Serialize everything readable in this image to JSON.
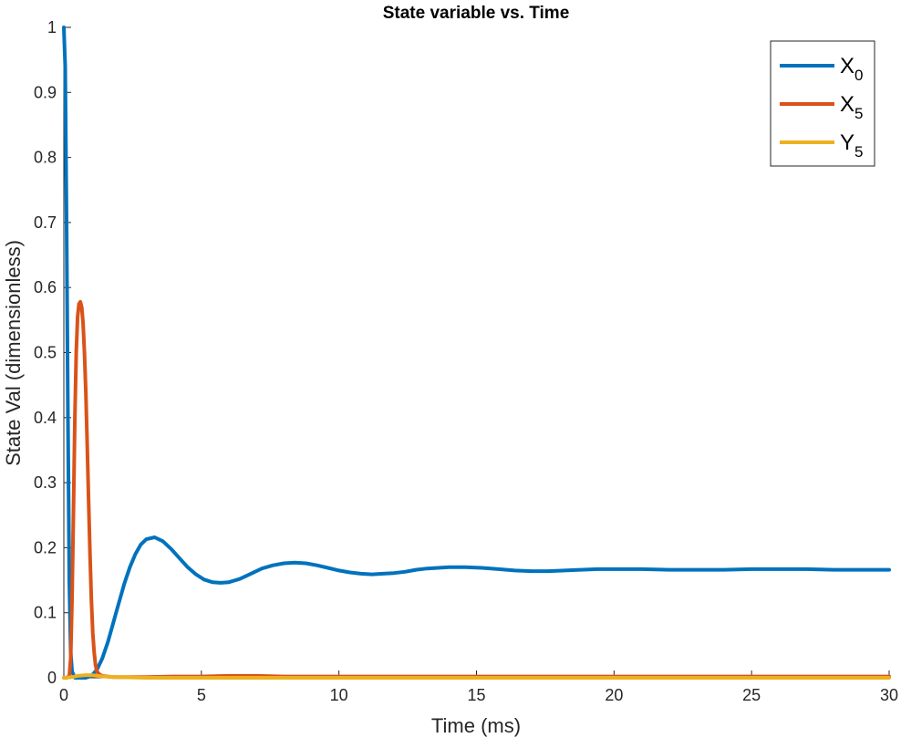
{
  "chart_data": {
    "type": "line",
    "title": "State variable vs. Time",
    "xlabel": "Time (ms)",
    "ylabel": "State Val (dimensionless)",
    "xlim": [
      0,
      30
    ],
    "ylim": [
      0,
      1
    ],
    "xticks": [
      "0",
      "5",
      "10",
      "15",
      "20",
      "25",
      "30"
    ],
    "yticks": [
      "0",
      "0.1",
      "0.2",
      "0.3",
      "0.4",
      "0.5",
      "0.6",
      "0.7",
      "0.8",
      "0.9",
      "1"
    ],
    "grid": false,
    "legend_position": "top-right",
    "series": [
      {
        "name": "X",
        "subscript": "0",
        "color": "#0072BD",
        "x": [
          0,
          0.05,
          0.1,
          0.15,
          0.2,
          0.25,
          0.3,
          0.4,
          0.6,
          0.8,
          1.0,
          1.2,
          1.4,
          1.6,
          1.8,
          2.0,
          2.2,
          2.4,
          2.6,
          2.8,
          3.0,
          3.3,
          3.6,
          3.9,
          4.2,
          4.5,
          4.8,
          5.1,
          5.4,
          5.7,
          6.0,
          6.4,
          6.8,
          7.2,
          7.6,
          8.0,
          8.4,
          8.8,
          9.2,
          9.6,
          10.0,
          10.4,
          10.8,
          11.2,
          11.6,
          12.0,
          12.4,
          12.8,
          13.2,
          13.6,
          14.0,
          14.6,
          15.2,
          15.8,
          16.4,
          17.0,
          17.6,
          18.2,
          18.8,
          19.4,
          20.0,
          21.0,
          22.0,
          23.0,
          24.0,
          25.0,
          26.0,
          27.0,
          28.0,
          29.0,
          30.0
        ],
        "y": [
          1.0,
          0.94,
          0.7,
          0.4,
          0.15,
          0.04,
          0.01,
          0.0,
          0.0,
          0.0,
          0.003,
          0.012,
          0.03,
          0.055,
          0.085,
          0.115,
          0.145,
          0.17,
          0.19,
          0.205,
          0.213,
          0.216,
          0.21,
          0.198,
          0.184,
          0.17,
          0.159,
          0.151,
          0.147,
          0.146,
          0.147,
          0.152,
          0.16,
          0.168,
          0.173,
          0.176,
          0.177,
          0.176,
          0.173,
          0.169,
          0.165,
          0.162,
          0.16,
          0.159,
          0.16,
          0.161,
          0.163,
          0.166,
          0.168,
          0.169,
          0.17,
          0.17,
          0.169,
          0.167,
          0.165,
          0.164,
          0.164,
          0.165,
          0.166,
          0.167,
          0.167,
          0.167,
          0.166,
          0.166,
          0.166,
          0.167,
          0.167,
          0.167,
          0.166,
          0.166,
          0.166
        ]
      },
      {
        "name": "X",
        "subscript": "5",
        "color": "#D95319",
        "x": [
          0,
          0.1,
          0.2,
          0.25,
          0.3,
          0.35,
          0.4,
          0.45,
          0.5,
          0.55,
          0.6,
          0.65,
          0.7,
          0.75,
          0.8,
          0.85,
          0.9,
          0.95,
          1.0,
          1.05,
          1.1,
          1.15,
          1.2,
          1.3,
          1.4,
          1.6,
          1.8,
          2.0,
          2.5,
          3.0,
          4.0,
          5.0,
          6.0,
          7.0,
          8.0,
          10.0,
          12.0,
          14.0,
          16.0,
          18.0,
          20.0,
          22.0,
          24.0,
          26.0,
          28.0,
          30.0
        ],
        "y": [
          0.0,
          0.0,
          0.003,
          0.03,
          0.12,
          0.26,
          0.4,
          0.5,
          0.555,
          0.575,
          0.578,
          0.57,
          0.545,
          0.5,
          0.44,
          0.36,
          0.27,
          0.19,
          0.12,
          0.07,
          0.04,
          0.02,
          0.01,
          0.005,
          0.003,
          0.002,
          0.001,
          0.001,
          0.001,
          0.001,
          0.002,
          0.002,
          0.003,
          0.003,
          0.002,
          0.002,
          0.002,
          0.002,
          0.002,
          0.002,
          0.002,
          0.002,
          0.002,
          0.002,
          0.002,
          0.002
        ]
      },
      {
        "name": "Y",
        "subscript": "5",
        "color": "#EDB120",
        "x": [
          0,
          0.3,
          0.5,
          0.8,
          1.0,
          1.2,
          1.5,
          2.0,
          3.0,
          5.0,
          10.0,
          15.0,
          20.0,
          25.0,
          30.0
        ],
        "y": [
          0.0,
          0.001,
          0.003,
          0.004,
          0.004,
          0.003,
          0.002,
          0.001,
          0.0,
          0.0,
          0.0,
          0.0,
          0.0,
          0.0,
          0.0
        ]
      }
    ]
  }
}
